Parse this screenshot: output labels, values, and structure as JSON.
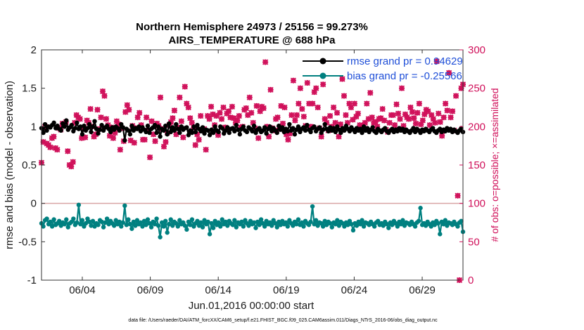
{
  "chart_data": {
    "type": "line",
    "title": "Northern Hemisphere 24973 / 25156 = 99.273%",
    "subtitle": "AIRS_TEMPERATURE @ 688 hPa",
    "xlabel": "Jun.01,2016 00:00:00 start",
    "ylabel": "rmse and bias (model - observation)",
    "y2label": "# of obs: o=possible; ×=assimilated",
    "xlim": [
      1,
      32
    ],
    "ylim": [
      -1,
      2
    ],
    "y2lim": [
      0,
      300
    ],
    "xticks": [
      4,
      9,
      14,
      19,
      24,
      29
    ],
    "xticklabels": [
      "06/04",
      "06/09",
      "06/14",
      "06/19",
      "06/24",
      "06/29"
    ],
    "yticks": [
      -1,
      -0.5,
      0,
      0.5,
      1,
      1.5,
      2
    ],
    "yticklabels": [
      "-1",
      "-0.5",
      "0",
      "0.5",
      "1",
      "1.5",
      "2"
    ],
    "y2ticks": [
      0,
      50,
      100,
      150,
      200,
      250,
      300
    ],
    "y2ticklabels": [
      "0",
      "50",
      "100",
      "150",
      "200",
      "250",
      "300"
    ],
    "legend": {
      "position": "top-right",
      "entries": [
        "rmse grand pr = 0.94629",
        "bias grand pr = -0.25566"
      ]
    },
    "series": [
      {
        "name": "rmse grand pr = 0.94629",
        "color": "#000000",
        "values": [
          0.98,
          0.92,
          1.03,
          0.95,
          1.0,
          0.99,
          1.02,
          1.05,
          0.98,
          1.01,
          0.97,
          0.95,
          1.04,
          1.0,
          1.08,
          0.96,
          0.99,
          1.02,
          0.94,
          0.98,
          1.05,
          0.97,
          1.0,
          0.9,
          1.01,
          0.95,
          0.98,
          1.03,
          0.93,
          1.0,
          1.07,
          0.97,
          0.91,
          0.96,
          1.02,
          0.95,
          0.99,
          1.01,
          0.97,
          0.93,
          0.99,
          0.96,
          1.0,
          0.98,
          0.95,
          1.03,
          0.99,
          0.82,
          0.97,
          0.95,
          0.9,
          1.01,
          0.95,
          0.98,
          0.97,
          1.0,
          0.94,
          0.99,
          0.96,
          0.93,
          1.01,
          0.92,
          0.97,
          0.99,
          1.02,
          0.92,
          1.0,
          0.87,
          0.97,
          0.95,
          1.01,
          0.9,
          1.04,
          0.93,
          0.99,
          0.95,
          1.03,
          0.97,
          0.92,
          1.0,
          0.96,
          0.98,
          0.99,
          0.89,
          0.95,
          0.92,
          1.0,
          0.93,
          1.02,
          0.97,
          0.94,
          0.99,
          0.91,
          0.96,
          0.95,
          0.89,
          0.96,
          0.92,
          1.0,
          0.95,
          0.93,
          1.0,
          0.98,
          0.91,
          0.95,
          0.99,
          0.92,
          0.97,
          0.98,
          0.94,
          1.02,
          0.96,
          0.9,
          0.97,
          1.0,
          0.95,
          0.93,
          0.99,
          0.97,
          0.94,
          1.01,
          0.92,
          0.96,
          0.98,
          0.93,
          0.95,
          0.99,
          0.91,
          0.97,
          1.0,
          0.94,
          0.98,
          0.95,
          0.92,
          1.01,
          0.96,
          0.99,
          0.93,
          0.97,
          0.94,
          1.03,
          0.95,
          0.98,
          0.9,
          0.96,
          1.0,
          0.93,
          0.97,
          0.99,
          0.95,
          1.02,
          0.96,
          0.93,
          0.98,
          1.0,
          0.94,
          0.97,
          0.99,
          0.92,
          0.96,
          1.03,
          0.97,
          0.94,
          0.99,
          0.95,
          0.98,
          0.93,
          1.0,
          0.96,
          0.92,
          0.98,
          0.95,
          1.01,
          0.97,
          0.94,
          0.99,
          0.96,
          0.93,
          0.98,
          0.95,
          0.97,
          0.92,
          1.0,
          0.95,
          0.98,
          0.93,
          0.96,
          0.99,
          0.94,
          0.92,
          0.97,
          0.95,
          0.93,
          0.96,
          0.98,
          0.94,
          0.92,
          0.95,
          0.97,
          0.93,
          0.96,
          0.94,
          0.98,
          0.95,
          0.97,
          0.93,
          0.96,
          0.94,
          0.92,
          0.95,
          0.98,
          0.93,
          0.97,
          0.95,
          0.92,
          0.96,
          0.94,
          0.97,
          0.95,
          0.93,
          0.96,
          0.98,
          0.94,
          0.92,
          0.95,
          0.97,
          0.93,
          0.96,
          0.94,
          0.98,
          0.95,
          0.97,
          0.93,
          0.96,
          0.94,
          0.92,
          0.95,
          0.98,
          0.93
        ]
      },
      {
        "name": "bias grand pr = -0.25566",
        "color": "#008080",
        "values": [
          -0.26,
          -0.3,
          -0.22,
          -0.2,
          -0.27,
          -0.24,
          -0.3,
          -0.21,
          -0.28,
          -0.26,
          -0.23,
          -0.29,
          -0.25,
          -0.27,
          -0.21,
          -0.31,
          -0.26,
          -0.24,
          -0.2,
          -0.28,
          -0.25,
          -0.02,
          -0.27,
          -0.22,
          -0.3,
          -0.26,
          -0.2,
          -0.24,
          -0.29,
          -0.23,
          -0.3,
          -0.26,
          -0.28,
          -0.22,
          -0.24,
          -0.31,
          -0.25,
          -0.2,
          -0.27,
          -0.23,
          -0.26,
          -0.29,
          -0.22,
          -0.27,
          -0.24,
          -0.3,
          -0.25,
          -0.03,
          -0.28,
          -0.21,
          -0.27,
          -0.33,
          -0.24,
          -0.29,
          -0.22,
          -0.27,
          -0.25,
          -0.3,
          -0.23,
          -0.28,
          -0.21,
          -0.26,
          -0.31,
          -0.24,
          -0.27,
          -0.2,
          -0.29,
          -0.44,
          -0.25,
          -0.3,
          -0.23,
          -0.38,
          -0.27,
          -0.21,
          -0.29,
          -0.24,
          -0.26,
          -0.3,
          -0.22,
          -0.27,
          -0.25,
          -0.29,
          -0.34,
          -0.24,
          -0.28,
          -0.21,
          -0.3,
          -0.26,
          -0.23,
          -0.29,
          -0.25,
          -0.31,
          -0.22,
          -0.27,
          -0.24,
          -0.4,
          -0.26,
          -0.32,
          -0.23,
          -0.28,
          -0.25,
          -0.3,
          -0.21,
          -0.27,
          -0.24,
          -0.29,
          -0.23,
          -0.26,
          -0.28,
          -0.22,
          -0.31,
          -0.25,
          -0.27,
          -0.24,
          -0.3,
          -0.22,
          -0.26,
          -0.29,
          -0.23,
          -0.27,
          -0.25,
          -0.32,
          -0.24,
          -0.28,
          -0.21,
          -0.26,
          -0.3,
          -0.23,
          -0.27,
          -0.25,
          -0.29,
          -0.22,
          -0.26,
          -0.31,
          -0.24,
          -0.28,
          -0.23,
          -0.27,
          -0.25,
          -0.3,
          -0.22,
          -0.26,
          -0.29,
          -0.24,
          -0.27,
          -0.21,
          -0.28,
          -0.25,
          -0.3,
          -0.23,
          -0.26,
          -0.28,
          -0.24,
          -0.04,
          -0.27,
          -0.22,
          -0.29,
          -0.25,
          -0.26,
          -0.3,
          -0.23,
          -0.28,
          -0.24,
          -0.26,
          -0.31,
          -0.25,
          -0.27,
          -0.22,
          -0.29,
          -0.24,
          -0.26,
          -0.3,
          -0.25,
          -0.28,
          -0.23,
          -0.27,
          -0.35,
          -0.26,
          -0.29,
          -0.24,
          -0.27,
          -0.22,
          -0.3,
          -0.25,
          -0.26,
          -0.28,
          -0.24,
          -0.27,
          -0.3,
          -0.25,
          -0.23,
          -0.28,
          -0.26,
          -0.29,
          -0.24,
          -0.27,
          -0.32,
          -0.25,
          -0.28,
          -0.23,
          -0.26,
          -0.3,
          -0.24,
          -0.27,
          -0.22,
          -0.29,
          -0.25,
          -0.26,
          -0.28,
          -0.24,
          -0.27,
          -0.3,
          -0.25,
          -0.23,
          -0.06,
          -0.28,
          -0.26,
          -0.29,
          -0.24,
          -0.27,
          -0.3,
          -0.25,
          -0.28,
          -0.23,
          -0.26,
          -0.4,
          -0.24,
          -0.27,
          -0.22,
          -0.29,
          -0.25,
          -0.26,
          -0.28,
          -0.24,
          -0.27,
          -0.3,
          -0.25,
          -0.23,
          -0.37
        ]
      },
      {
        "name": "# of obs possible/assimilated",
        "color": "#d0105a",
        "axis": "right",
        "values": [
          153,
          180,
          200,
          178,
          176,
          173,
          185,
          187,
          172,
          170,
          198,
          196,
          204,
          203,
          206,
          168,
          150,
          148,
          154,
          205,
          215,
          212,
          210,
          185,
          197,
          186,
          208,
          205,
          223,
          200,
          187,
          190,
          222,
          197,
          212,
          246,
          240,
          210,
          202,
          188,
          199,
          185,
          192,
          207,
          203,
          170,
          198,
          181,
          219,
          228,
          222,
          182,
          201,
          179,
          198,
          212,
          218,
          202,
          183,
          183,
          212,
          195,
          160,
          207,
          190,
          181,
          204,
          201,
          238,
          197,
          174,
          180,
          192,
          202,
          206,
          211,
          221,
          190,
          199,
          238,
          207,
          186,
          252,
          230,
          225,
          211,
          205,
          199,
          176,
          190,
          183,
          214,
          195,
          197,
          170,
          214,
          210,
          226,
          216,
          202,
          214,
          189,
          218,
          210,
          225,
          199,
          217,
          220,
          212,
          226,
          211,
          205,
          208,
          214,
          199,
          200,
          222,
          224,
          215,
          238,
          218,
          205,
          198,
          227,
          185,
          220,
          226,
          224,
          284,
          200,
          187,
          248,
          198,
          195,
          210,
          212,
          197,
          227,
          204,
          225,
          190,
          183,
          191,
          215,
          260,
          208,
          215,
          230,
          250,
          223,
          213,
          201,
          257,
          230,
          200,
          230,
          245,
          250,
          225,
          198,
          187,
          255,
          210,
          205,
          195,
          214,
          200,
          225,
          205,
          218,
          187,
          203,
          262,
          240,
          215,
          205,
          230,
          225,
          209,
          230,
          213,
          217,
          202,
          200,
          201,
          205,
          230,
          210,
          244,
          212,
          205,
          206,
          200,
          210,
          211,
          223,
          208,
          196,
          193,
          205,
          215,
          215,
          202,
          229,
          217,
          210,
          250,
          201,
          216,
          212,
          210,
          225,
          219,
          211,
          204,
          218,
          230,
          203,
          208,
          216,
          222,
          220,
          202,
          215,
          210,
          205,
          285,
          217,
          206,
          188,
          212,
          230,
          221,
          270,
          212,
          220,
          195,
          240,
          110,
          0,
          250,
          255
        ]
      }
    ]
  },
  "footer": "data file: /Users/raeder/DAI/ATM_forcXX/CAM6_setup/f.e21.FHIST_BGC.f09_025.CAM6assim.011/Diags_NTrS_2016-06/obs_diag_output.nc"
}
